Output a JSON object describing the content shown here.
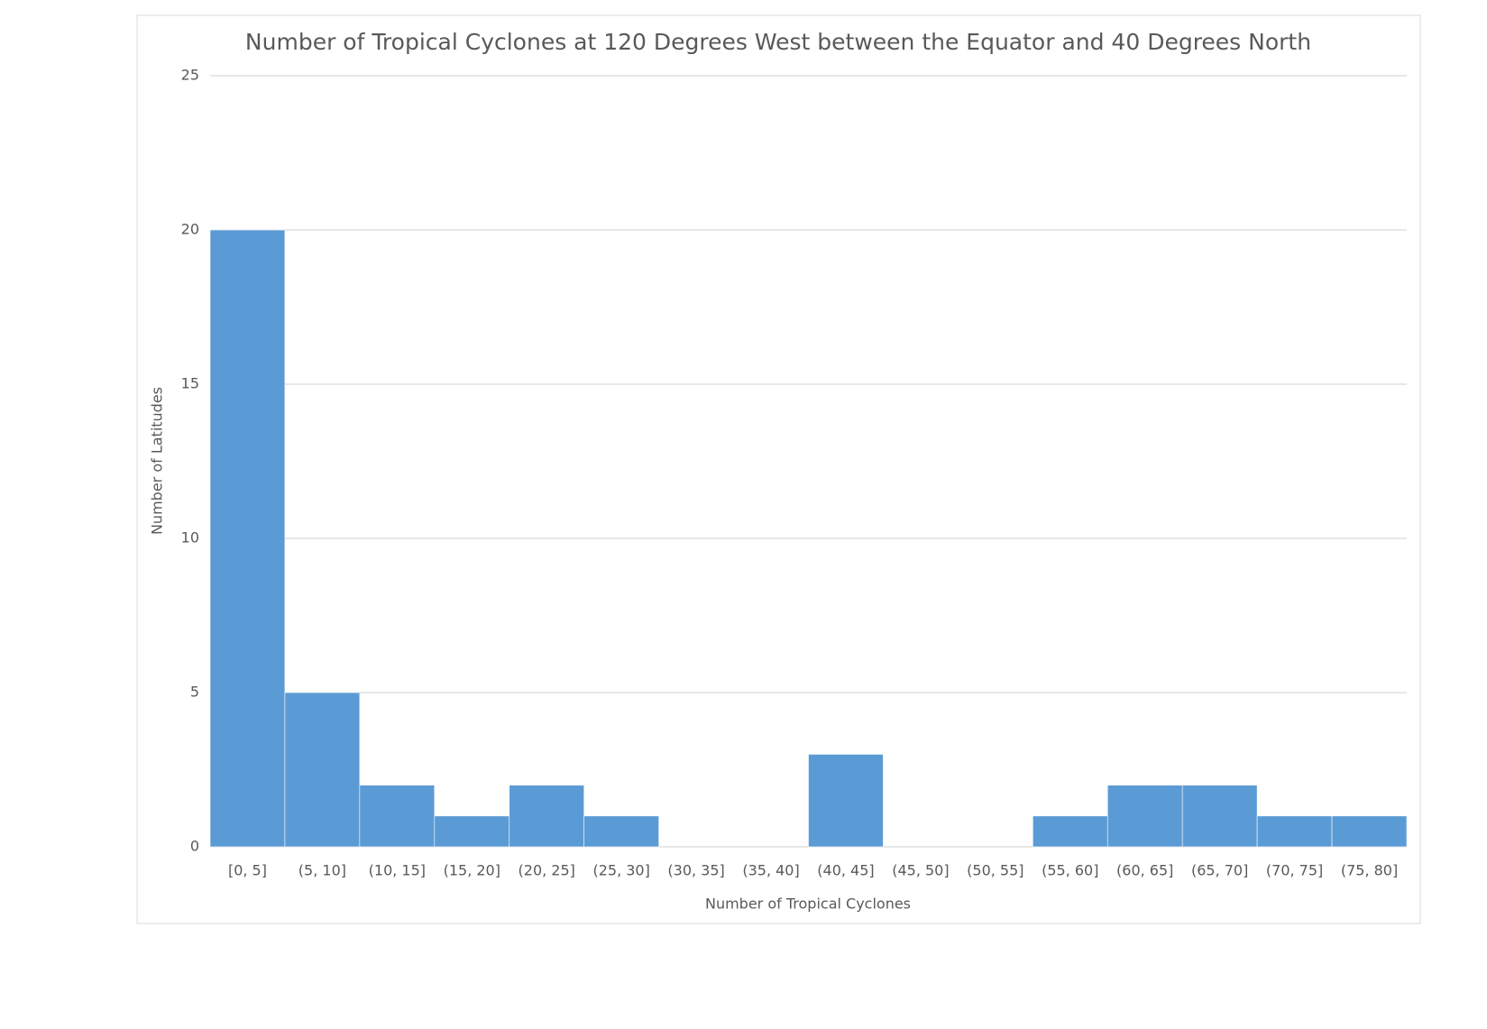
{
  "chart_data": {
    "type": "bar",
    "title": "Number of Tropical Cyclones at 120 Degrees West between the Equator and 40 Degrees North",
    "x_label": "Number of Tropical Cyclones",
    "y_label": "Number of Latitudes",
    "categories": [
      "[0, 5]",
      "(5, 10]",
      "(10, 15]",
      "(15, 20]",
      "(20, 25]",
      "(25, 30]",
      "(30, 35]",
      "(35, 40]",
      "(40, 45]",
      "(45, 50]",
      "(50, 55]",
      "(55, 60]",
      "(60, 65]",
      "(65, 70]",
      "(70, 75]",
      "(75, 80]"
    ],
    "values": [
      20,
      5,
      2,
      1,
      2,
      1,
      0,
      0,
      3,
      0,
      0,
      1,
      2,
      2,
      1,
      1
    ],
    "color": "#5b9bd5",
    "ylim": [
      0,
      25
    ],
    "yticks": [
      0,
      5,
      10,
      15,
      20,
      25
    ],
    "grid": true
  }
}
